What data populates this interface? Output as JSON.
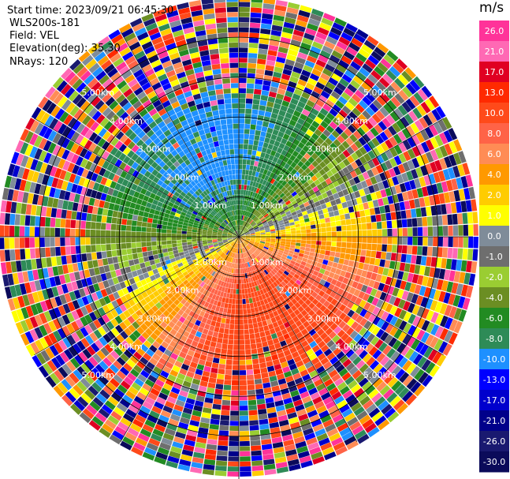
{
  "header": {
    "start_time": "Start time: 2023/09/21 06:45:30",
    "instrument": "WLS200s-181",
    "field": "Field: VEL",
    "elevation": "Elevation(deg): 35.30",
    "nrays": "NRays: 120"
  },
  "chart_data": {
    "type": "heatmap",
    "projection": "polar-ppi",
    "field": "VEL",
    "n_rays": 120,
    "range_rings_km": [
      1.0,
      2.0,
      3.0,
      4.0,
      5.0
    ],
    "ring_labels": [
      "1.00km",
      "2.00km",
      "3.00km",
      "4.00km",
      "5.00km"
    ],
    "max_range_km": 7.0,
    "colorbar": {
      "unit": "m/s",
      "vmin": -30.0,
      "vmax": 30.0,
      "ticks": [
        "26.0",
        "21.0",
        "17.0",
        "13.0",
        "10.0",
        "8.0",
        "6.0",
        "4.0",
        "2.0",
        "1.0",
        "0.0",
        "-1.0",
        "-2.0",
        "-4.0",
        "-6.0",
        "-8.0",
        "-10.0",
        "-13.0",
        "-17.0",
        "-21.0",
        "-26.0",
        "-30.0"
      ],
      "bins": [
        {
          "lo": 26,
          "hi": 30,
          "color": "#ff3399"
        },
        {
          "lo": 21,
          "hi": 26,
          "color": "#ff69b4"
        },
        {
          "lo": 17,
          "hi": 21,
          "color": "#e00022"
        },
        {
          "lo": 13,
          "hi": 17,
          "color": "#ff2a00"
        },
        {
          "lo": 10,
          "hi": 13,
          "color": "#ff4a1a"
        },
        {
          "lo": 8,
          "hi": 10,
          "color": "#ff6347"
        },
        {
          "lo": 6,
          "hi": 8,
          "color": "#ff8c55"
        },
        {
          "lo": 4,
          "hi": 6,
          "color": "#ff9900"
        },
        {
          "lo": 2,
          "hi": 4,
          "color": "#ffcc00"
        },
        {
          "lo": 1,
          "hi": 2,
          "color": "#ffff00"
        },
        {
          "lo": 0,
          "hi": 1,
          "color": "#7f8c99"
        },
        {
          "lo": -1,
          "hi": 0,
          "color": "#6e6e6e"
        },
        {
          "lo": -2,
          "hi": -1,
          "color": "#9acd32"
        },
        {
          "lo": -4,
          "hi": -2,
          "color": "#6b8e23"
        },
        {
          "lo": -6,
          "hi": -4,
          "color": "#228b22"
        },
        {
          "lo": -8,
          "hi": -6,
          "color": "#2e8b57"
        },
        {
          "lo": -10,
          "hi": -8,
          "color": "#1e90ff"
        },
        {
          "lo": -13,
          "hi": -10,
          "color": "#0000ff"
        },
        {
          "lo": -17,
          "hi": -13,
          "color": "#0000cd"
        },
        {
          "lo": -21,
          "hi": -17,
          "color": "#00008b"
        },
        {
          "lo": -26,
          "hi": -21,
          "color": "#191970"
        },
        {
          "lo": -30,
          "hi": -26,
          "color": "#0b0b5a"
        }
      ]
    },
    "velocity_pattern": {
      "description_note": "",
      "max_inbound_ms": -9.0,
      "max_outbound_ms": 12.0,
      "toward_radar_azimuth_deg": 340,
      "away_from_radar_azimuth_deg": 160
    }
  }
}
